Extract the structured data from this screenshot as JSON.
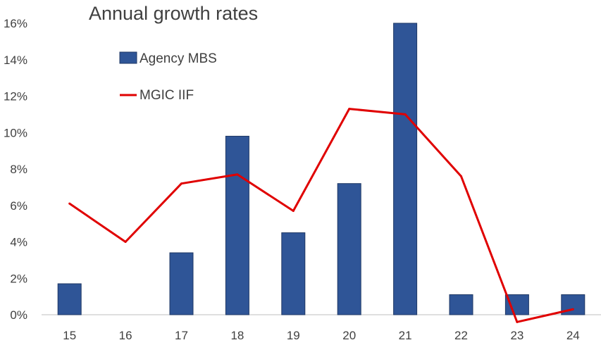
{
  "chart_data": {
    "type": "bar",
    "title": "Annual growth rates",
    "xlabel": "",
    "ylabel": "",
    "categories": [
      "15",
      "16",
      "17",
      "18",
      "19",
      "20",
      "21",
      "22",
      "23",
      "24"
    ],
    "series": [
      {
        "name": "Agency MBS",
        "type": "bar",
        "color": "#2F5597",
        "values": [
          1.7,
          0.0,
          3.4,
          9.8,
          4.5,
          7.2,
          16.0,
          1.1,
          1.1,
          1.1
        ]
      },
      {
        "name": "MGIC IIF",
        "type": "line",
        "color": "#E00000",
        "values": [
          6.1,
          4.0,
          7.2,
          7.7,
          5.7,
          11.3,
          11.0,
          7.6,
          -0.4,
          0.3
        ]
      }
    ],
    "ylim": [
      0,
      16
    ],
    "yticks": [
      "0%",
      "2%",
      "4%",
      "6%",
      "8%",
      "10%",
      "12%",
      "14%",
      "16%"
    ],
    "ytick_values": [
      0,
      2,
      4,
      6,
      8,
      10,
      12,
      14,
      16
    ],
    "grid": false,
    "legend": "top-left"
  }
}
